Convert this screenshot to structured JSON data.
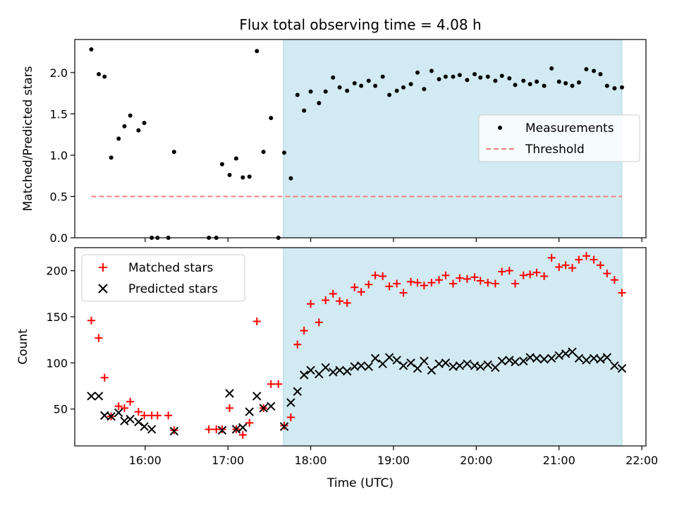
{
  "title": "Flux total observing time = 4.08 h",
  "colors": {
    "measurement": "#000000",
    "threshold": "#f08080",
    "matched": "#ff0000",
    "predicted": "#000000",
    "observing_window": "#add8e6"
  },
  "chart_data": [
    {
      "type": "scatter",
      "ylabel": "Matched/Predicted stars",
      "ylim": [
        0,
        2.4
      ],
      "yticks": [
        "0.0",
        "0.5",
        "1.0",
        "1.5",
        "2.0"
      ],
      "xlim": [
        15.15,
        22.05
      ],
      "observing_window": [
        17.67,
        21.76
      ],
      "legend": {
        "placement": "center-right",
        "entries": [
          "Measurements",
          "Threshold"
        ]
      },
      "threshold": {
        "name": "Threshold",
        "y": 0.5,
        "x": [
          15.35,
          21.76
        ]
      },
      "series": [
        {
          "name": "Measurements",
          "x": [
            15.35,
            15.44,
            15.51,
            15.59,
            15.68,
            15.75,
            15.82,
            15.92,
            15.99,
            16.08,
            16.15,
            16.28,
            16.35,
            16.77,
            16.86,
            16.93,
            17.02,
            17.1,
            17.18,
            17.26,
            17.35,
            17.43,
            17.52,
            17.61,
            17.68,
            17.76,
            17.84,
            17.92,
            18.0,
            18.1,
            18.18,
            18.27,
            18.35,
            18.44,
            18.53,
            18.61,
            18.7,
            18.78,
            18.87,
            18.95,
            19.04,
            19.12,
            19.21,
            19.29,
            19.37,
            19.46,
            19.55,
            19.63,
            19.72,
            19.8,
            19.89,
            19.98,
            20.05,
            20.14,
            20.23,
            20.31,
            20.4,
            20.47,
            20.57,
            20.65,
            20.73,
            20.82,
            20.91,
            21.0,
            21.08,
            21.16,
            21.24,
            21.33,
            21.42,
            21.5,
            21.58,
            21.67,
            21.76
          ],
          "y": [
            2.28,
            1.98,
            1.95,
            0.97,
            1.2,
            1.35,
            1.48,
            1.3,
            1.39,
            0.0,
            0.0,
            0.0,
            1.04,
            0.0,
            0.0,
            0.89,
            0.76,
            0.96,
            0.73,
            0.74,
            2.26,
            1.04,
            1.45,
            0.0,
            1.03,
            0.72,
            1.73,
            1.54,
            1.77,
            1.63,
            1.77,
            1.94,
            1.82,
            1.78,
            1.87,
            1.84,
            1.9,
            1.84,
            1.95,
            1.73,
            1.78,
            1.82,
            1.86,
            2.0,
            1.8,
            2.02,
            1.92,
            1.95,
            1.95,
            1.97,
            1.91,
            1.98,
            1.94,
            1.95,
            1.9,
            1.96,
            1.93,
            1.85,
            1.9,
            1.86,
            1.89,
            1.84,
            2.05,
            1.89,
            1.87,
            1.84,
            1.88,
            2.04,
            2.02,
            1.98,
            1.84,
            1.81,
            1.82
          ]
        }
      ]
    },
    {
      "type": "scatter",
      "xlabel": "Time (UTC)",
      "ylabel": "Count",
      "ylim": [
        10,
        225
      ],
      "yticks": [
        "50",
        "100",
        "150",
        "200"
      ],
      "xlim": [
        15.15,
        22.05
      ],
      "xticks": [
        "16:00",
        "17:00",
        "18:00",
        "19:00",
        "20:00",
        "21:00",
        "22:00"
      ],
      "observing_window": [
        17.67,
        21.76
      ],
      "legend": {
        "placement": "top-left",
        "entries": [
          "Matched stars",
          "Predicted stars"
        ]
      },
      "series": [
        {
          "name": "Matched stars",
          "marker": "plus",
          "x": [
            15.35,
            15.44,
            15.51,
            15.59,
            15.68,
            15.75,
            15.82,
            15.92,
            15.99,
            16.08,
            16.15,
            16.28,
            16.35,
            16.77,
            16.86,
            16.93,
            17.02,
            17.1,
            17.18,
            17.26,
            17.35,
            17.43,
            17.52,
            17.61,
            17.68,
            17.76,
            17.84,
            17.92,
            18.0,
            18.1,
            18.18,
            18.27,
            18.35,
            18.44,
            18.53,
            18.61,
            18.7,
            18.78,
            18.87,
            18.95,
            19.04,
            19.12,
            19.21,
            19.29,
            19.37,
            19.46,
            19.55,
            19.63,
            19.72,
            19.8,
            19.89,
            19.98,
            20.05,
            20.14,
            20.23,
            20.31,
            20.4,
            20.47,
            20.57,
            20.65,
            20.73,
            20.82,
            20.91,
            21.0,
            21.08,
            21.16,
            21.24,
            21.33,
            21.42,
            21.5,
            21.58,
            21.67,
            21.76
          ],
          "y": [
            146,
            127,
            84,
            42,
            53,
            51,
            58,
            47,
            43,
            43,
            43,
            43,
            27,
            28,
            28,
            28,
            51,
            28,
            22,
            35,
            145,
            51,
            77,
            77,
            32,
            41,
            120,
            135,
            164,
            144,
            168,
            175,
            167,
            165,
            182,
            177,
            185,
            195,
            194,
            183,
            186,
            176,
            188,
            187,
            184,
            187,
            190,
            195,
            186,
            192,
            191,
            193,
            189,
            187,
            186,
            199,
            200,
            186,
            195,
            196,
            198,
            194,
            214,
            204,
            206,
            203,
            212,
            216,
            212,
            206,
            197,
            190,
            176
          ]
        },
        {
          "name": "Predicted stars",
          "marker": "x",
          "x": [
            15.35,
            15.44,
            15.51,
            15.59,
            15.68,
            15.75,
            15.82,
            15.92,
            15.99,
            16.08,
            16.35,
            16.93,
            17.02,
            17.1,
            17.18,
            17.26,
            17.35,
            17.43,
            17.52,
            17.68,
            17.76,
            17.84,
            17.92,
            18.0,
            18.1,
            18.18,
            18.27,
            18.35,
            18.44,
            18.53,
            18.61,
            18.7,
            18.78,
            18.87,
            18.95,
            19.04,
            19.12,
            19.21,
            19.29,
            19.37,
            19.46,
            19.55,
            19.63,
            19.72,
            19.8,
            19.89,
            19.98,
            20.05,
            20.14,
            20.23,
            20.31,
            20.4,
            20.47,
            20.57,
            20.65,
            20.73,
            20.82,
            20.91,
            21.0,
            21.08,
            21.16,
            21.24,
            21.33,
            21.42,
            21.5,
            21.58,
            21.67,
            21.76
          ],
          "y": [
            64,
            64,
            43,
            42,
            46,
            37,
            39,
            36,
            31,
            28,
            26,
            27,
            67,
            28,
            30,
            47,
            64,
            51,
            53,
            31,
            57,
            69,
            87,
            92,
            88,
            95,
            90,
            92,
            91,
            96,
            97,
            96,
            105,
            99,
            106,
            103,
            97,
            100,
            94,
            102,
            92,
            99,
            100,
            96,
            97,
            99,
            97,
            96,
            98,
            95,
            102,
            103,
            101,
            102,
            106,
            105,
            104,
            105,
            108,
            110,
            112,
            105,
            103,
            105,
            104,
            106,
            97,
            94
          ]
        }
      ]
    }
  ]
}
